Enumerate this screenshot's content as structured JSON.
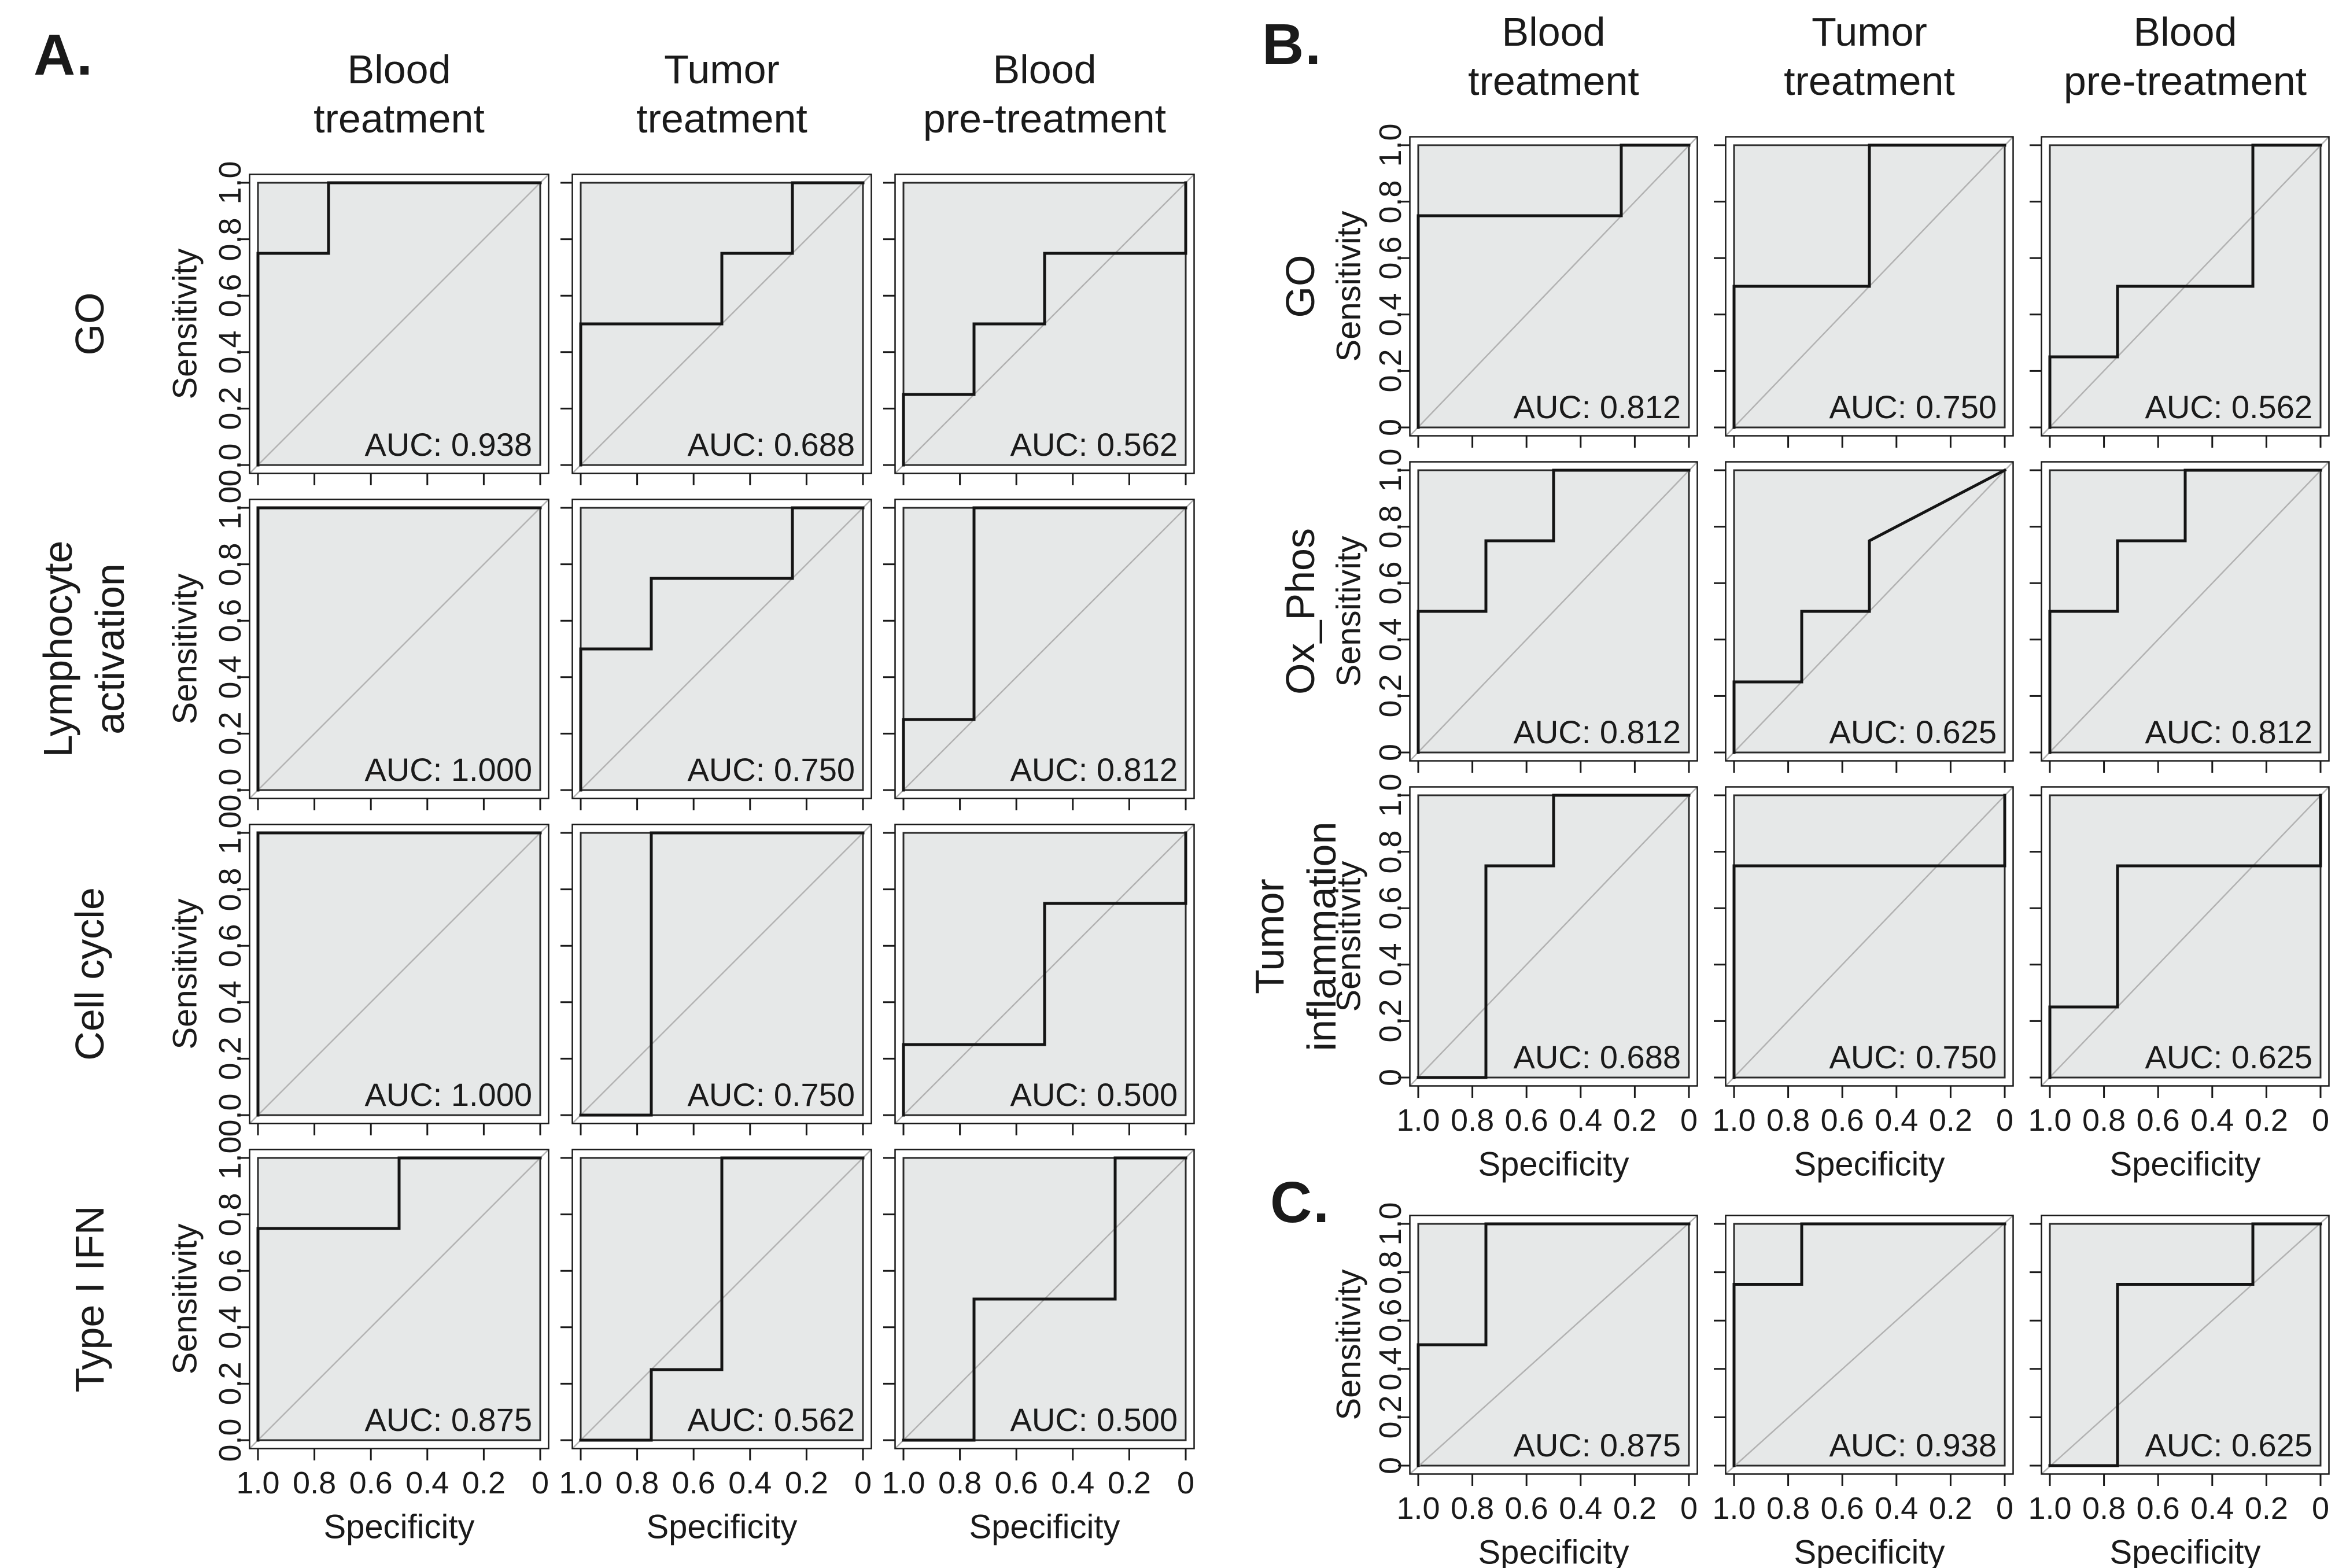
{
  "figure": {
    "panel_labels": {
      "a": "A.",
      "b": "B.",
      "c": "C."
    },
    "auc_prefix": "AUC: ",
    "axis": {
      "x_label": "Specificity",
      "y_label": "Sensitivity",
      "x_tick_labels": [
        "1.0",
        "0.8",
        "0.6",
        "0.4",
        "0.2",
        "0"
      ],
      "y_tick_labels_panel_a": [
        "0.0",
        "0.2",
        "0.4",
        "0.6",
        "0.8",
        "1.0"
      ],
      "y_tick_labels_panels_bc": [
        "0",
        "0.2",
        "0.4",
        "0.6",
        "0.8",
        "1.0"
      ]
    },
    "colors": {
      "plot_fill": "#e6e8e8",
      "inner_frame": "#2b2b2b",
      "outer_frame": "#1a1a1a",
      "diagonal": "#b2b2b2",
      "curve": "#141414",
      "text": "#1a1a1a"
    }
  },
  "chart_data": [
    {
      "panel": "A",
      "type": "line",
      "subtype": "roc_step_curves",
      "col_headers": [
        [
          "Blood",
          "treatment"
        ],
        [
          "Tumor",
          "treatment"
        ],
        [
          "Blood",
          "pre-treatment"
        ]
      ],
      "row_labels": [
        [
          "GO"
        ],
        [
          "Lymphocyte",
          "activation"
        ],
        [
          "Cell cycle"
        ],
        [
          "Type I IFN"
        ]
      ],
      "xlabel": "Specificity",
      "ylabel": "Sensitivity",
      "x_range": [
        1.0,
        0
      ],
      "y_range": [
        0,
        1.0
      ],
      "grid": false,
      "plots": [
        {
          "row": "GO",
          "col": "Blood treatment",
          "auc": "0.938",
          "curve_spec_sens": [
            [
              1,
              0
            ],
            [
              1,
              0.75
            ],
            [
              0.75,
              0.75
            ],
            [
              0.75,
              1
            ],
            [
              0,
              1
            ]
          ]
        },
        {
          "row": "GO",
          "col": "Tumor treatment",
          "auc": "0.688",
          "curve_spec_sens": [
            [
              1,
              0
            ],
            [
              1,
              0.5
            ],
            [
              0.5,
              0.5
            ],
            [
              0.5,
              0.75
            ],
            [
              0.25,
              0.75
            ],
            [
              0.25,
              1
            ],
            [
              0,
              1
            ]
          ]
        },
        {
          "row": "GO",
          "col": "Blood pre-treatment",
          "auc": "0.562",
          "curve_spec_sens": [
            [
              1,
              0
            ],
            [
              1,
              0.25
            ],
            [
              0.75,
              0.25
            ],
            [
              0.75,
              0.5
            ],
            [
              0.5,
              0.5
            ],
            [
              0.5,
              0.75
            ],
            [
              0,
              0.75
            ],
            [
              0,
              1
            ]
          ]
        },
        {
          "row": "Lymphocyte activation",
          "col": "Blood treatment",
          "auc": "1.000",
          "curve_spec_sens": [
            [
              1,
              0
            ],
            [
              1,
              1
            ],
            [
              0,
              1
            ]
          ]
        },
        {
          "row": "Lymphocyte activation",
          "col": "Tumor treatment",
          "auc": "0.750",
          "curve_spec_sens": [
            [
              1,
              0
            ],
            [
              1,
              0.5
            ],
            [
              0.75,
              0.5
            ],
            [
              0.75,
              0.75
            ],
            [
              0.25,
              0.75
            ],
            [
              0.25,
              1
            ],
            [
              0,
              1
            ]
          ]
        },
        {
          "row": "Lymphocyte activation",
          "col": "Blood pre-treatment",
          "auc": "0.812",
          "curve_spec_sens": [
            [
              1,
              0
            ],
            [
              1,
              0.25
            ],
            [
              0.75,
              0.25
            ],
            [
              0.75,
              1
            ],
            [
              0,
              1
            ]
          ]
        },
        {
          "row": "Cell cycle",
          "col": "Blood treatment",
          "auc": "1.000",
          "curve_spec_sens": [
            [
              1,
              0
            ],
            [
              1,
              1
            ],
            [
              0,
              1
            ]
          ]
        },
        {
          "row": "Cell cycle",
          "col": "Tumor treatment",
          "auc": "0.750",
          "curve_spec_sens": [
            [
              1,
              0
            ],
            [
              0.75,
              0
            ],
            [
              0.75,
              1
            ],
            [
              0,
              1
            ]
          ]
        },
        {
          "row": "Cell cycle",
          "col": "Blood pre-treatment",
          "auc": "0.500",
          "curve_spec_sens": [
            [
              1,
              0
            ],
            [
              1,
              0.25
            ],
            [
              0.5,
              0.25
            ],
            [
              0.5,
              0.75
            ],
            [
              0,
              0.75
            ],
            [
              0,
              1
            ]
          ]
        },
        {
          "row": "Type I IFN",
          "col": "Blood treatment",
          "auc": "0.875",
          "curve_spec_sens": [
            [
              1,
              0
            ],
            [
              1,
              0.75
            ],
            [
              0.5,
              0.75
            ],
            [
              0.5,
              1
            ],
            [
              0,
              1
            ]
          ]
        },
        {
          "row": "Type I IFN",
          "col": "Tumor treatment",
          "auc": "0.562",
          "curve_spec_sens": [
            [
              1,
              0
            ],
            [
              0.75,
              0
            ],
            [
              0.75,
              0.25
            ],
            [
              0.5,
              0.25
            ],
            [
              0.5,
              1
            ],
            [
              0,
              1
            ]
          ]
        },
        {
          "row": "Type I IFN",
          "col": "Blood pre-treatment",
          "auc": "0.500",
          "curve_spec_sens": [
            [
              1,
              0
            ],
            [
              0.75,
              0
            ],
            [
              0.75,
              0.5
            ],
            [
              0.25,
              0.5
            ],
            [
              0.25,
              1
            ],
            [
              0,
              1
            ]
          ]
        }
      ]
    },
    {
      "panel": "B",
      "type": "line",
      "subtype": "roc_step_curves",
      "col_headers": [
        [
          "Blood",
          "treatment"
        ],
        [
          "Tumor",
          "treatment"
        ],
        [
          "Blood",
          "pre-treatment"
        ]
      ],
      "row_labels": [
        [
          "GO"
        ],
        [
          "Ox_Phos"
        ],
        [
          "Tumor",
          "inflammation"
        ]
      ],
      "xlabel": "Specificity",
      "ylabel": "Sensitivity",
      "x_range": [
        1.0,
        0
      ],
      "y_range": [
        0,
        1.0
      ],
      "grid": false,
      "plots": [
        {
          "row": "GO",
          "col": "Blood treatment",
          "auc": "0.812",
          "curve_spec_sens": [
            [
              1,
              0
            ],
            [
              1,
              0.75
            ],
            [
              0.25,
              0.75
            ],
            [
              0.25,
              1
            ],
            [
              0,
              1
            ]
          ]
        },
        {
          "row": "GO",
          "col": "Tumor treatment",
          "auc": "0.750",
          "curve_spec_sens": [
            [
              1,
              0
            ],
            [
              1,
              0.5
            ],
            [
              0.5,
              0.5
            ],
            [
              0.5,
              1
            ],
            [
              0,
              1
            ]
          ]
        },
        {
          "row": "GO",
          "col": "Blood pre-treatment",
          "auc": "0.562",
          "curve_spec_sens": [
            [
              1,
              0
            ],
            [
              1,
              0.25
            ],
            [
              0.75,
              0.25
            ],
            [
              0.75,
              0.5
            ],
            [
              0.25,
              0.5
            ],
            [
              0.25,
              1
            ],
            [
              0,
              1
            ]
          ]
        },
        {
          "row": "Ox_Phos",
          "col": "Blood treatment",
          "auc": "0.812",
          "curve_spec_sens": [
            [
              1,
              0
            ],
            [
              1,
              0.5
            ],
            [
              0.75,
              0.5
            ],
            [
              0.75,
              0.75
            ],
            [
              0.5,
              0.75
            ],
            [
              0.5,
              1
            ],
            [
              0,
              1
            ]
          ]
        },
        {
          "row": "Ox_Phos",
          "col": "Tumor treatment",
          "auc": "0.625",
          "curve_spec_sens": [
            [
              1,
              0
            ],
            [
              1,
              0.25
            ],
            [
              0.75,
              0.25
            ],
            [
              0.75,
              0.5
            ],
            [
              0.5,
              0.5
            ],
            [
              0.5,
              0.75
            ],
            [
              0,
              1
            ]
          ]
        },
        {
          "row": "Ox_Phos",
          "col": "Blood pre-treatment",
          "auc": "0.812",
          "curve_spec_sens": [
            [
              1,
              0
            ],
            [
              1,
              0.5
            ],
            [
              0.75,
              0.5
            ],
            [
              0.75,
              0.75
            ],
            [
              0.5,
              0.75
            ],
            [
              0.5,
              1
            ],
            [
              0,
              1
            ]
          ]
        },
        {
          "row": "Tumor inflammation",
          "col": "Blood treatment",
          "auc": "0.688",
          "curve_spec_sens": [
            [
              1,
              0
            ],
            [
              0.75,
              0
            ],
            [
              0.75,
              0.75
            ],
            [
              0.5,
              0.75
            ],
            [
              0.5,
              1
            ],
            [
              0,
              1
            ]
          ]
        },
        {
          "row": "Tumor inflammation",
          "col": "Tumor treatment",
          "auc": "0.750",
          "curve_spec_sens": [
            [
              1,
              0
            ],
            [
              1,
              0.75
            ],
            [
              0,
              0.75
            ],
            [
              0,
              1
            ]
          ]
        },
        {
          "row": "Tumor inflammation",
          "col": "Blood pre-treatment",
          "auc": "0.625",
          "curve_spec_sens": [
            [
              1,
              0
            ],
            [
              1,
              0.25
            ],
            [
              0.75,
              0.25
            ],
            [
              0.75,
              0.75
            ],
            [
              0,
              0.75
            ],
            [
              0,
              1
            ]
          ]
        }
      ]
    },
    {
      "panel": "C",
      "type": "line",
      "subtype": "roc_step_curves",
      "col_headers": null,
      "row_labels": null,
      "xlabel": "Specificity",
      "ylabel": "Sensitivity",
      "x_range": [
        1.0,
        0
      ],
      "y_range": [
        0,
        1.0
      ],
      "grid": false,
      "plots": [
        {
          "row": "C",
          "col": "Blood treatment",
          "auc": "0.875",
          "curve_spec_sens": [
            [
              1,
              0
            ],
            [
              1,
              0.5
            ],
            [
              0.75,
              0.5
            ],
            [
              0.75,
              1
            ],
            [
              0,
              1
            ]
          ]
        },
        {
          "row": "C",
          "col": "Tumor treatment",
          "auc": "0.938",
          "curve_spec_sens": [
            [
              1,
              0
            ],
            [
              1,
              0.75
            ],
            [
              0.75,
              0.75
            ],
            [
              0.75,
              1
            ],
            [
              0,
              1
            ]
          ]
        },
        {
          "row": "C",
          "col": "Blood pre-treatment",
          "auc": "0.625",
          "curve_spec_sens": [
            [
              1,
              0
            ],
            [
              0.75,
              0
            ],
            [
              0.75,
              0.75
            ],
            [
              0.25,
              0.75
            ],
            [
              0.25,
              1
            ],
            [
              0,
              1
            ]
          ]
        }
      ]
    }
  ]
}
